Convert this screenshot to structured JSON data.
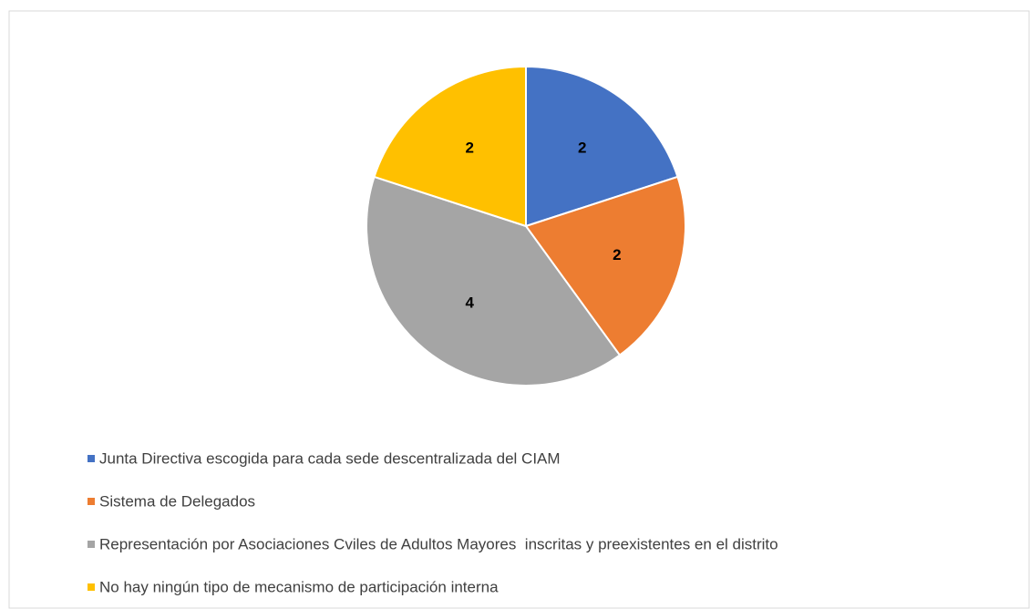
{
  "chart_data": {
    "type": "pie",
    "categories": [
      "Junta Directiva escogida para cada sede descentralizada del CIAM",
      "Sistema de Delegados",
      "Representación por Asociaciones Cviles de Adultos Mayores  inscritas y preexistentes en el distrito",
      "No hay ningún tipo de mecanismo de participación interna"
    ],
    "values": [
      2,
      2,
      4,
      2
    ],
    "colors": [
      "#4472c4",
      "#ed7d31",
      "#a5a5a5",
      "#ffc000"
    ],
    "legend": "bottom"
  }
}
